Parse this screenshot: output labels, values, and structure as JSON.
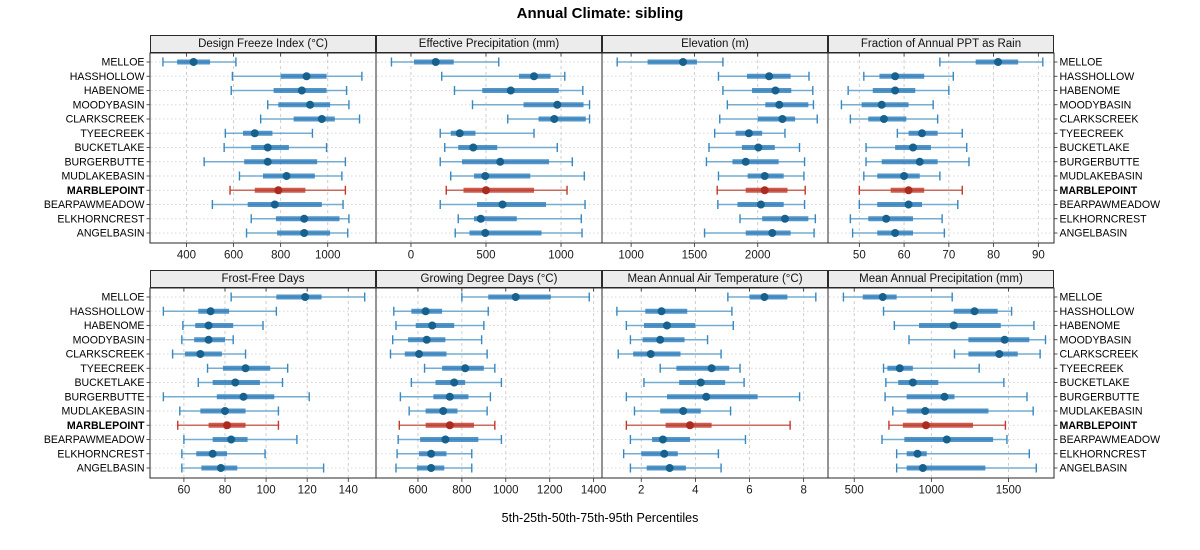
{
  "title": "Annual Climate: sibling",
  "caption": "5th-25th-50th-75th-95th Percentiles",
  "colors": {
    "blue_dot": "#17618f",
    "blue_bar": "#2e7ebc",
    "blue_cap": "#3787c0",
    "blue_line": "#74add1",
    "red_dot": "#ab2b20",
    "red_bar": "#c0392b",
    "red_cap": "#c0392b",
    "red_line": "#cd6a5e",
    "strip_bg": "#ececec",
    "grid_line": "#c9c9c9",
    "panel_border": "#2a2a2a"
  },
  "chart_data": {
    "type": "scatter",
    "style": "trellis-percentile-interval-dotplot",
    "layout": {
      "rows": 2,
      "cols": 4
    },
    "percentiles": [
      5,
      25,
      50,
      75,
      95
    ],
    "highlight_site": "MARBLEPOINT",
    "sites": [
      "MELLOE",
      "HASSHOLLOW",
      "HABENOME",
      "MOODYBASIN",
      "CLARKSCREEK",
      "TYEECREEK",
      "BUCKETLAKE",
      "BURGERBUTTE",
      "MUDLAKEBASIN",
      "MARBLEPOINT",
      "BEARPAWMEADOW",
      "ELKHORNCREST",
      "ANGELBASIN"
    ],
    "panels": [
      {
        "title": "Design Freeze Index (°C)",
        "xlim": [
          245,
          1205
        ],
        "ticks": [
          400,
          600,
          800,
          1000
        ],
        "values": [
          [
            300,
            360,
            430,
            500,
            610
          ],
          [
            595,
            800,
            910,
            995,
            1145
          ],
          [
            590,
            770,
            890,
            995,
            1080
          ],
          [
            745,
            790,
            925,
            1010,
            1090
          ],
          [
            715,
            855,
            975,
            1030,
            1135
          ],
          [
            565,
            640,
            690,
            765,
            935
          ],
          [
            560,
            675,
            745,
            835,
            995
          ],
          [
            475,
            645,
            745,
            955,
            1075
          ],
          [
            625,
            725,
            825,
            945,
            1060
          ],
          [
            585,
            690,
            790,
            905,
            1075
          ],
          [
            510,
            660,
            775,
            975,
            1065
          ],
          [
            675,
            780,
            900,
            1050,
            1090
          ],
          [
            655,
            785,
            900,
            1010,
            1085
          ]
        ]
      },
      {
        "title": "Effective Precipitation (mm)",
        "xlim": [
          -233,
          1273
        ],
        "ticks": [
          0,
          500,
          1000
        ],
        "values": [
          [
            -130,
            20,
            165,
            285,
            585
          ],
          [
            205,
            720,
            820,
            930,
            1025
          ],
          [
            290,
            475,
            665,
            985,
            1145
          ],
          [
            410,
            750,
            975,
            1150,
            1190
          ],
          [
            645,
            850,
            955,
            1165,
            1190
          ],
          [
            195,
            265,
            325,
            430,
            820
          ],
          [
            225,
            315,
            415,
            575,
            975
          ],
          [
            195,
            340,
            595,
            920,
            1075
          ],
          [
            265,
            420,
            495,
            795,
            1155
          ],
          [
            235,
            350,
            500,
            820,
            1040
          ],
          [
            195,
            440,
            610,
            900,
            1160
          ],
          [
            315,
            420,
            465,
            705,
            1135
          ],
          [
            295,
            390,
            495,
            870,
            1140
          ]
        ]
      },
      {
        "title": "Elevation (m)",
        "xlim": [
          770,
          2555
        ],
        "ticks": [
          1000,
          1500,
          2000
        ],
        "values": [
          [
            890,
            1130,
            1410,
            1520,
            1725
          ],
          [
            1690,
            1915,
            2090,
            2260,
            2405
          ],
          [
            1725,
            1955,
            2140,
            2265,
            2435
          ],
          [
            1760,
            2060,
            2170,
            2400,
            2440
          ],
          [
            1700,
            2000,
            2195,
            2295,
            2470
          ],
          [
            1660,
            1825,
            1930,
            2035,
            2215
          ],
          [
            1615,
            1875,
            2005,
            2135,
            2330
          ],
          [
            1595,
            1800,
            1905,
            2165,
            2370
          ],
          [
            1690,
            1920,
            2055,
            2205,
            2365
          ],
          [
            1680,
            1905,
            2055,
            2235,
            2375
          ],
          [
            1685,
            1840,
            2025,
            2205,
            2370
          ],
          [
            1860,
            2035,
            2215,
            2400,
            2455
          ],
          [
            1580,
            1905,
            2115,
            2260,
            2445
          ]
        ]
      },
      {
        "title": "Fraction of Annual PPT as Rain",
        "xlim": [
          43,
          93.5
        ],
        "ticks": [
          50,
          60,
          70,
          80,
          90
        ],
        "values": [
          [
            68,
            76,
            81,
            85.5,
            91
          ],
          [
            51,
            54.5,
            58,
            64.5,
            71
          ],
          [
            47.5,
            53,
            58,
            62.5,
            70
          ],
          [
            46,
            50.5,
            55,
            61,
            66.5
          ],
          [
            48,
            52,
            55.5,
            60.5,
            67.5
          ],
          [
            58.5,
            61,
            64,
            67.5,
            73
          ],
          [
            51.5,
            58,
            62,
            66,
            74
          ],
          [
            51.5,
            55,
            63.5,
            67.5,
            74.5
          ],
          [
            51,
            54,
            60,
            63.5,
            68
          ],
          [
            50,
            57,
            61,
            64.5,
            73
          ],
          [
            50,
            54,
            61,
            64,
            72
          ],
          [
            48,
            52,
            56,
            62,
            68.5
          ],
          [
            48.5,
            54,
            58,
            62,
            69
          ]
        ]
      },
      {
        "title": "Frost-Free Days",
        "xlim": [
          43.5,
          153.5
        ],
        "ticks": [
          60,
          80,
          100,
          120,
          140
        ],
        "values": [
          [
            83,
            105,
            119,
            127,
            148
          ],
          [
            50,
            67,
            73,
            82,
            105
          ],
          [
            59.5,
            65.5,
            72,
            84,
            98.5
          ],
          [
            59,
            65,
            72,
            80,
            84
          ],
          [
            54.5,
            60.5,
            68,
            78.5,
            90
          ],
          [
            71.5,
            79,
            90,
            102,
            110.5
          ],
          [
            67,
            74,
            85,
            97,
            108
          ],
          [
            50,
            76,
            89,
            104,
            121
          ],
          [
            58,
            68,
            80,
            90,
            106
          ],
          [
            57,
            72,
            81,
            90,
            106
          ],
          [
            60,
            74,
            83,
            91,
            115
          ],
          [
            59,
            66,
            74,
            81,
            99.5
          ],
          [
            59,
            68.5,
            78,
            86,
            128
          ]
        ]
      },
      {
        "title": "Growing Degree Days (°C)",
        "xlim": [
          409,
          1438
        ],
        "ticks": [
          600,
          800,
          1000,
          1200,
          1400
        ],
        "values": [
          [
            800,
            920,
            1045,
            1205,
            1380
          ],
          [
            490,
            570,
            635,
            710,
            920
          ],
          [
            500,
            590,
            665,
            765,
            900
          ],
          [
            485,
            555,
            640,
            725,
            890
          ],
          [
            475,
            540,
            605,
            730,
            915
          ],
          [
            630,
            710,
            815,
            900,
            950
          ],
          [
            570,
            680,
            765,
            815,
            980
          ],
          [
            520,
            670,
            745,
            830,
            930
          ],
          [
            560,
            635,
            715,
            780,
            915
          ],
          [
            515,
            635,
            745,
            855,
            950
          ],
          [
            510,
            610,
            725,
            875,
            980
          ],
          [
            505,
            605,
            660,
            730,
            845
          ],
          [
            500,
            595,
            660,
            720,
            845
          ]
        ]
      },
      {
        "title": "Mean Annual Air Temperature (°C)",
        "xlim": [
          0.55,
          8.9
        ],
        "ticks": [
          2,
          4,
          6,
          8
        ],
        "values": [
          [
            5.2,
            6.0,
            6.55,
            7.4,
            8.45
          ],
          [
            1.1,
            2.15,
            2.75,
            3.7,
            5.35
          ],
          [
            1.45,
            2.1,
            2.95,
            4.0,
            5.4
          ],
          [
            1.6,
            2.05,
            2.7,
            3.6,
            4.45
          ],
          [
            1.15,
            1.7,
            2.35,
            3.45,
            4.95
          ],
          [
            2.7,
            3.3,
            4.6,
            5.25,
            5.65
          ],
          [
            2.1,
            3.4,
            4.2,
            5.1,
            5.8
          ],
          [
            1.45,
            2.95,
            4.4,
            6.3,
            7.85
          ],
          [
            1.75,
            2.7,
            3.55,
            4.2,
            5.3
          ],
          [
            1.45,
            2.9,
            3.8,
            4.6,
            7.5
          ],
          [
            1.6,
            2.4,
            2.8,
            3.8,
            5.85
          ],
          [
            1.35,
            2.0,
            2.85,
            3.35,
            4.85
          ],
          [
            1.6,
            2.2,
            3.05,
            3.65,
            4.95
          ]
        ]
      },
      {
        "title": "Mean Annual Precipitation (mm)",
        "xlim": [
          330,
          1795
        ],
        "ticks": [
          500,
          1000,
          1500
        ],
        "values": [
          [
            430,
            555,
            685,
            775,
            1135
          ],
          [
            690,
            1145,
            1280,
            1430,
            1520
          ],
          [
            760,
            920,
            1145,
            1450,
            1665
          ],
          [
            855,
            1240,
            1475,
            1635,
            1740
          ],
          [
            1150,
            1240,
            1440,
            1560,
            1705
          ],
          [
            690,
            715,
            795,
            880,
            1310
          ],
          [
            705,
            785,
            880,
            1045,
            1470
          ],
          [
            700,
            840,
            1085,
            1150,
            1620
          ],
          [
            750,
            840,
            960,
            1370,
            1660
          ],
          [
            725,
            815,
            965,
            1270,
            1480
          ],
          [
            680,
            825,
            1100,
            1400,
            1490
          ],
          [
            775,
            840,
            910,
            970,
            1635
          ],
          [
            775,
            840,
            945,
            1350,
            1680
          ]
        ]
      }
    ]
  }
}
